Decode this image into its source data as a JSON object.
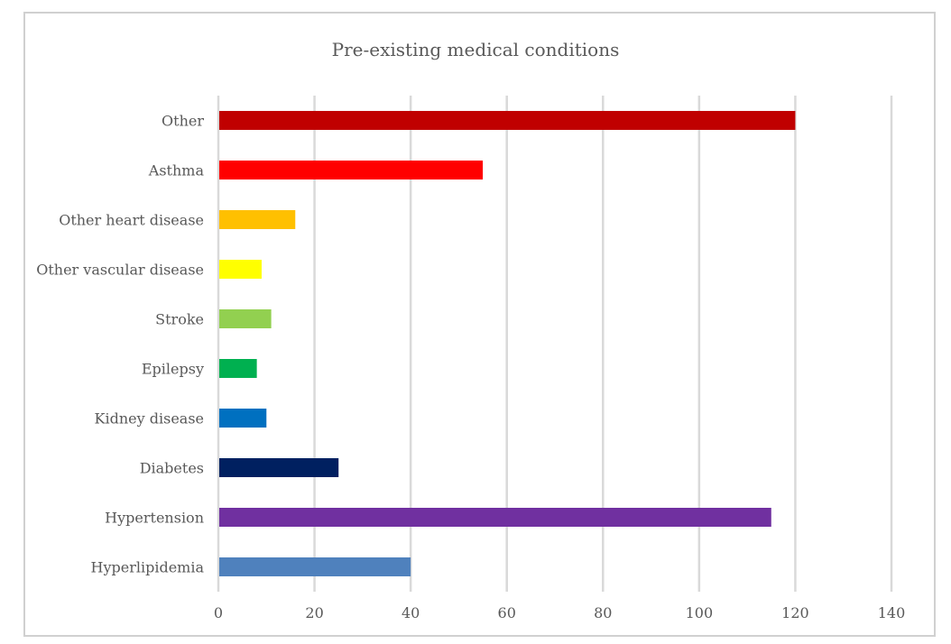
{
  "chart_data": {
    "type": "bar",
    "orientation": "horizontal",
    "title": "Pre-existing medical conditions",
    "xlabel": "",
    "ylabel": "",
    "xlim": [
      0,
      140
    ],
    "xticks": [
      0,
      20,
      40,
      60,
      80,
      100,
      120,
      140
    ],
    "grid": "vertical",
    "legend": "none",
    "categories": [
      "Other",
      "Asthma",
      "Other heart disease",
      "Other vascular disease",
      "Stroke",
      "Epilepsy",
      "Kidney disease",
      "Diabetes",
      "Hypertension",
      "Hyperlipidemia"
    ],
    "values": [
      120,
      55,
      16,
      9,
      11,
      8,
      10,
      25,
      115,
      40
    ],
    "colors": [
      "#C00000",
      "#FF0000",
      "#FFC000",
      "#FFFF00",
      "#92D050",
      "#00B050",
      "#0070C0",
      "#002060",
      "#7030A0",
      "#4F81BD"
    ]
  }
}
